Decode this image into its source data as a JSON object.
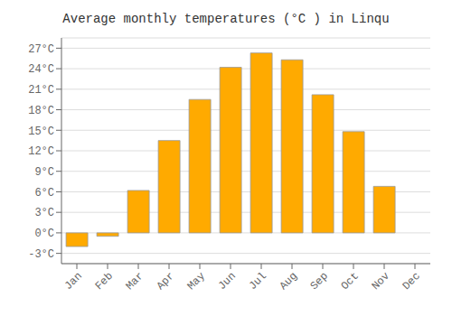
{
  "chart_data": {
    "type": "bar",
    "title": "Average monthly temperatures (°C ) in Linqu",
    "categories": [
      "Jan",
      "Feb",
      "Mar",
      "Apr",
      "May",
      "Jun",
      "Jul",
      "Aug",
      "Sep",
      "Oct",
      "Nov",
      "Dec"
    ],
    "values": [
      -2.0,
      -0.5,
      6.2,
      13.5,
      19.5,
      24.2,
      26.3,
      25.3,
      20.2,
      14.8,
      6.8,
      0.0
    ],
    "color": "#FFAA00",
    "ylim": [
      -4.5,
      28.5
    ],
    "yticks": [
      {
        "value": -3,
        "label": "-3°C"
      },
      {
        "value": 0,
        "label": "0°C"
      },
      {
        "value": 3,
        "label": "3°C"
      },
      {
        "value": 6,
        "label": "6°C"
      },
      {
        "value": 9,
        "label": "9°C"
      },
      {
        "value": 12,
        "label": "12°C"
      },
      {
        "value": 15,
        "label": "15°C"
      },
      {
        "value": 18,
        "label": "18°C"
      },
      {
        "value": 21,
        "label": "21°C"
      },
      {
        "value": 24,
        "label": "24°C"
      },
      {
        "value": 27,
        "label": "27°C"
      }
    ],
    "grid": true
  }
}
